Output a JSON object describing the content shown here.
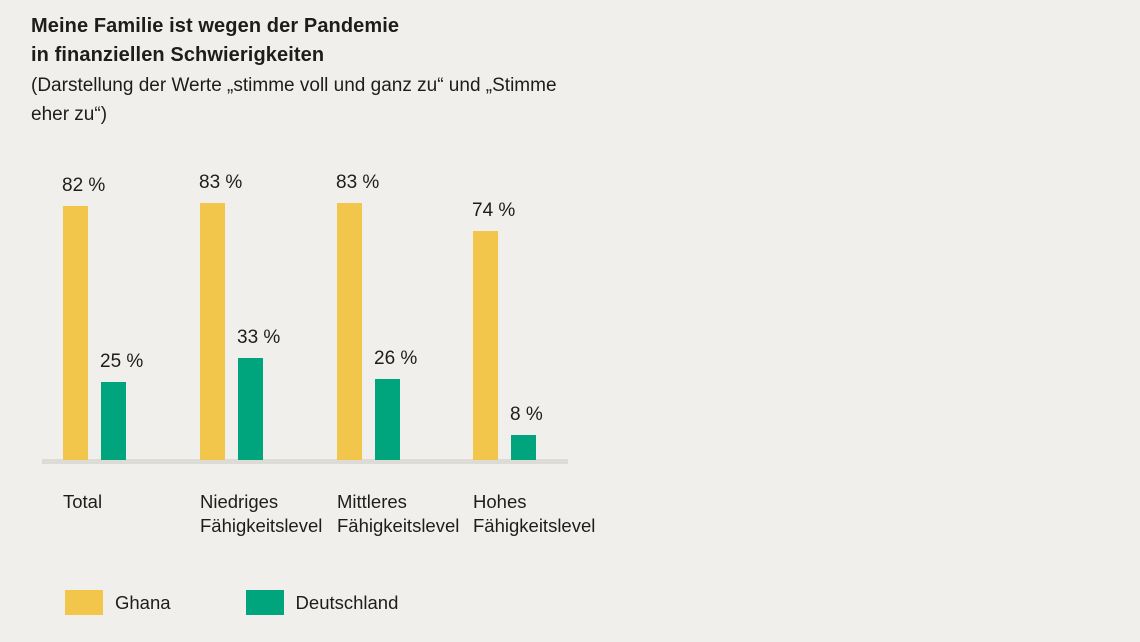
{
  "background_color": "#f0efeb",
  "text_color": "#1d1d1b",
  "axis_line_color": "#dcdbd5",
  "chart_data": {
    "type": "bar",
    "title": "Meine Familie ist wegen der Pandemie\nin finanziellen Schwierigkeiten",
    "subtitle": "(Darstellung der Werte „stimme voll und ganz zu“ und „Stimme\neher zu“)",
    "categories": [
      "Total",
      "Niedriges\nFähigkeitslevel",
      "Mittleres\nFähigkeitslevel",
      "Hohes\nFähigkeitslevel"
    ],
    "series": [
      {
        "name": "Ghana",
        "color": "#f1c64a",
        "values": [
          82,
          83,
          83,
          74
        ]
      },
      {
        "name": "Deutschland",
        "color": "#00a57d",
        "values": [
          25,
          33,
          26,
          8
        ]
      }
    ],
    "value_suffix": " %",
    "ylabel": "",
    "xlabel": "",
    "ylim": [
      0,
      100
    ],
    "grid": false,
    "legend_position": "bottom"
  }
}
